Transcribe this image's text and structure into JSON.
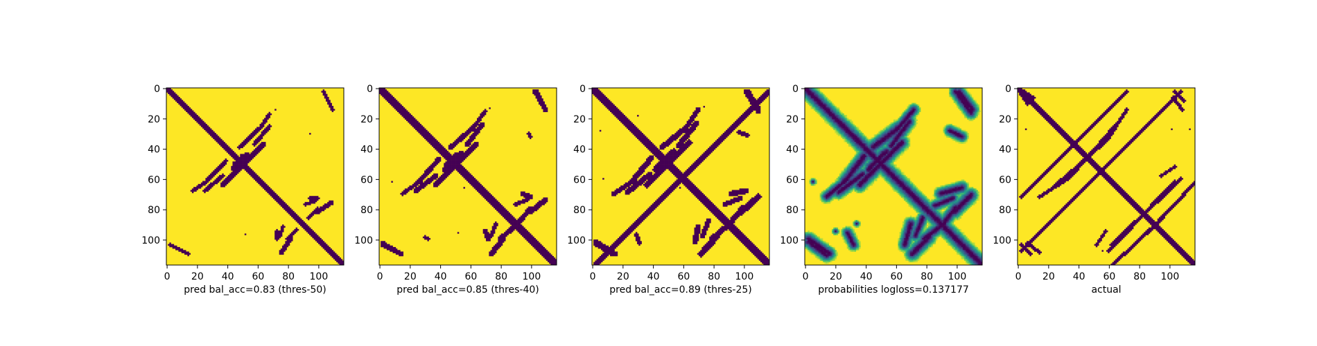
{
  "colors": {
    "contact": "#440154",
    "background": "#fde725",
    "mid": "#21918c",
    "light": "#7ad151",
    "axis": "#000000"
  },
  "chart_data": [
    {
      "type": "heatmap",
      "xlabel": "pred bal_acc=0.83 (thres-50)",
      "matrix_size": 118,
      "xlim": [
        0,
        117
      ],
      "ylim": [
        117,
        0
      ],
      "xticks": [
        "0",
        "20",
        "40",
        "60",
        "80",
        "100"
      ],
      "yticks": [
        "0",
        "20",
        "40",
        "60",
        "80",
        "100"
      ],
      "mode": "binary",
      "diag_width": 1.6,
      "features": [
        {
          "from": [
            0,
            0
          ],
          "to": [
            117,
            117
          ],
          "w": 2.0
        },
        {
          "from": [
            37,
            64
          ],
          "to": [
            53,
            48
          ],
          "w": 1.6
        },
        {
          "from": [
            25,
            68
          ],
          "to": [
            37,
            58
          ],
          "w": 1.4
        },
        {
          "from": [
            44,
            53
          ],
          "to": [
            50,
            45
          ],
          "w": 1.6
        },
        {
          "from": [
            48,
            39
          ],
          "to": [
            62,
            26
          ],
          "w": 1.4
        },
        {
          "from": [
            62,
            26
          ],
          "to": [
            68,
            17
          ],
          "w": 1.2
        },
        {
          "from": [
            76,
            109
          ],
          "to": [
            82,
            100
          ],
          "w": 1.6
        },
        {
          "from": [
            80,
            100
          ],
          "to": [
            86,
            94
          ],
          "w": 1.4
        },
        {
          "from": [
            104,
            2
          ],
          "to": [
            110,
            14
          ],
          "w": 1.3
        },
        {
          "from": [
            2,
            104
          ],
          "to": [
            12,
            109
          ],
          "w": 1.3
        },
        {
          "from": [
            95,
            73
          ],
          "to": [
            100,
            73
          ],
          "w": 1.4
        },
        {
          "from": [
            92,
            77
          ],
          "to": [
            98,
            75
          ],
          "w": 1.2
        }
      ],
      "dots": [
        [
          95,
          30
        ],
        [
          52,
          97
        ],
        [
          72,
          14
        ]
      ]
    },
    {
      "type": "heatmap",
      "xlabel": "pred bal_acc=0.85 (thres-40)",
      "matrix_size": 118,
      "xlim": [
        0,
        117
      ],
      "ylim": [
        117,
        0
      ],
      "xticks": [
        "0",
        "20",
        "40",
        "60",
        "80",
        "100"
      ],
      "yticks": [
        "0",
        "20",
        "40",
        "60",
        "80",
        "100"
      ],
      "mode": "binary",
      "diag_width": 1.8,
      "features": [
        {
          "from": [
            0,
            0
          ],
          "to": [
            117,
            117
          ],
          "w": 2.2
        },
        {
          "from": [
            37,
            64
          ],
          "to": [
            53,
            48
          ],
          "w": 1.8
        },
        {
          "from": [
            24,
            68
          ],
          "to": [
            37,
            58
          ],
          "w": 1.6
        },
        {
          "from": [
            43,
            54
          ],
          "to": [
            51,
            44
          ],
          "w": 1.8
        },
        {
          "from": [
            47,
            39
          ],
          "to": [
            62,
            26
          ],
          "w": 1.6
        },
        {
          "from": [
            62,
            26
          ],
          "to": [
            70,
            15
          ],
          "w": 1.3
        },
        {
          "from": [
            74,
            110
          ],
          "to": [
            82,
            100
          ],
          "w": 1.8
        },
        {
          "from": [
            80,
            100
          ],
          "to": [
            88,
            93
          ],
          "w": 1.6
        },
        {
          "from": [
            103,
            2
          ],
          "to": [
            110,
            14
          ],
          "w": 1.5
        },
        {
          "from": [
            2,
            104
          ],
          "to": [
            12,
            109
          ],
          "w": 1.5
        },
        {
          "from": [
            95,
            70
          ],
          "to": [
            100,
            72
          ],
          "w": 1.6
        },
        {
          "from": [
            90,
            77
          ],
          "to": [
            98,
            74
          ],
          "w": 1.4
        },
        {
          "from": [
            99,
            30
          ],
          "to": [
            100,
            32
          ],
          "w": 1.2
        }
      ],
      "dots": [
        [
          8,
          62
        ],
        [
          52,
          96
        ],
        [
          56,
          66
        ],
        [
          73,
          13
        ]
      ]
    },
    {
      "type": "heatmap",
      "xlabel": "pred bal_acc=0.89 (thres-25)",
      "matrix_size": 118,
      "xlim": [
        0,
        117
      ],
      "ylim": [
        117,
        0
      ],
      "xticks": [
        "0",
        "20",
        "40",
        "60",
        "80",
        "100"
      ],
      "yticks": [
        "0",
        "20",
        "40",
        "60",
        "80",
        "100"
      ],
      "mode": "binary",
      "diag_width": 2.0,
      "features": [
        {
          "from": [
            0,
            0
          ],
          "to": [
            117,
            117
          ],
          "w": 2.4
        },
        {
          "from": [
            2,
            117
          ],
          "to": [
            117,
            2
          ],
          "w": 1.6
        },
        {
          "from": [
            36,
            64
          ],
          "to": [
            53,
            47
          ],
          "w": 2.0
        },
        {
          "from": [
            23,
            69
          ],
          "to": [
            38,
            57
          ],
          "w": 1.8
        },
        {
          "from": [
            42,
            54
          ],
          "to": [
            52,
            43
          ],
          "w": 2.0
        },
        {
          "from": [
            46,
            39
          ],
          "to": [
            62,
            26
          ],
          "w": 1.8
        },
        {
          "from": [
            62,
            26
          ],
          "to": [
            70,
            14
          ],
          "w": 1.5
        },
        {
          "from": [
            72,
            110
          ],
          "to": [
            82,
            99
          ],
          "w": 2.0
        },
        {
          "from": [
            79,
            100
          ],
          "to": [
            90,
            91
          ],
          "w": 1.8
        },
        {
          "from": [
            102,
            2
          ],
          "to": [
            110,
            15
          ],
          "w": 1.7
        },
        {
          "from": [
            2,
            103
          ],
          "to": [
            13,
            110
          ],
          "w": 1.7
        },
        {
          "from": [
            92,
            70
          ],
          "to": [
            102,
            68
          ],
          "w": 1.8
        },
        {
          "from": [
            88,
            77
          ],
          "to": [
            98,
            73
          ],
          "w": 1.6
        },
        {
          "from": [
            97,
            29
          ],
          "to": [
            103,
            31
          ],
          "w": 1.4
        }
      ],
      "dots": [
        [
          5,
          28
        ],
        [
          7,
          60
        ],
        [
          58,
          66
        ],
        [
          30,
          18
        ],
        [
          74,
          12
        ]
      ]
    },
    {
      "type": "heatmap",
      "xlabel": "probabilities logloss=0.137177",
      "matrix_size": 118,
      "xlim": [
        0,
        117
      ],
      "ylim": [
        117,
        0
      ],
      "xticks": [
        "0",
        "20",
        "40",
        "60",
        "80",
        "100"
      ],
      "yticks": [
        "0",
        "20",
        "40",
        "60",
        "80",
        "100"
      ],
      "mode": "probability",
      "diag_width": 2.0,
      "features": [
        {
          "from": [
            0,
            0
          ],
          "to": [
            117,
            117
          ],
          "w": 2.2
        },
        {
          "from": [
            36,
            64
          ],
          "to": [
            53,
            47
          ],
          "w": 2.0
        },
        {
          "from": [
            22,
            69
          ],
          "to": [
            38,
            57
          ],
          "w": 1.8
        },
        {
          "from": [
            42,
            54
          ],
          "to": [
            52,
            43
          ],
          "w": 1.8
        },
        {
          "from": [
            45,
            39
          ],
          "to": [
            62,
            26
          ],
          "w": 2.0
        },
        {
          "from": [
            62,
            26
          ],
          "to": [
            72,
            14
          ],
          "w": 1.6
        },
        {
          "from": [
            71,
            110
          ],
          "to": [
            82,
            99
          ],
          "w": 2.0
        },
        {
          "from": [
            79,
            100
          ],
          "to": [
            92,
            90
          ],
          "w": 1.8
        },
        {
          "from": [
            100,
            2
          ],
          "to": [
            110,
            16
          ],
          "w": 1.8
        },
        {
          "from": [
            2,
            102
          ],
          "to": [
            14,
            111
          ],
          "w": 1.8
        },
        {
          "from": [
            90,
            70
          ],
          "to": [
            104,
            66
          ],
          "w": 1.8
        },
        {
          "from": [
            86,
            78
          ],
          "to": [
            98,
            73
          ],
          "w": 1.6
        },
        {
          "from": [
            96,
            28
          ],
          "to": [
            104,
            32
          ],
          "w": 1.6
        }
      ],
      "dots": [
        [
          5,
          62
        ],
        [
          34,
          90
        ],
        [
          72,
          14
        ],
        [
          20,
          95
        ]
      ]
    },
    {
      "type": "heatmap",
      "xlabel": "actual",
      "matrix_size": 118,
      "xlim": [
        0,
        117
      ],
      "ylim": [
        117,
        0
      ],
      "xticks": [
        "0",
        "20",
        "40",
        "60",
        "80",
        "100"
      ],
      "yticks": [
        "0",
        "20",
        "40",
        "60",
        "80",
        "100"
      ],
      "mode": "binary",
      "diag_width": 1.6,
      "features": [
        {
          "from": [
            0,
            0
          ],
          "to": [
            117,
            117
          ],
          "w": 2.0
        },
        {
          "from": [
            4,
            2
          ],
          "to": [
            10,
            6
          ],
          "w": 1.0
        },
        {
          "from": [
            2,
            4
          ],
          "to": [
            6,
            10
          ],
          "w": 1.0
        },
        {
          "from": [
            2,
            72
          ],
          "to": [
            72,
            2
          ],
          "w": 1.2
        },
        {
          "from": [
            2,
            108
          ],
          "to": [
            60,
            50
          ],
          "w": 1.2
        },
        {
          "from": [
            24,
            65
          ],
          "to": [
            38,
            53
          ],
          "w": 1.3
        },
        {
          "from": [
            38,
            53
          ],
          "to": [
            60,
            33
          ],
          "w": 1.2
        },
        {
          "from": [
            60,
            33
          ],
          "to": [
            72,
            14
          ],
          "w": 1.1
        },
        {
          "from": [
            60,
            108
          ],
          "to": [
            104,
            62
          ],
          "w": 1.2
        },
        {
          "from": [
            86,
            96
          ],
          "to": [
            118,
            62
          ],
          "w": 1.1
        },
        {
          "from": [
            104,
            2
          ],
          "to": [
            110,
            8
          ],
          "w": 1.1
        },
        {
          "from": [
            6,
            103
          ],
          "to": [
            14,
            109
          ],
          "w": 1.1
        },
        {
          "from": [
            95,
            58
          ],
          "to": [
            104,
            52
          ],
          "w": 1.0
        }
      ],
      "dots": [
        [
          5,
          27
        ],
        [
          102,
          27
        ],
        [
          114,
          27
        ],
        [
          56,
          108
        ]
      ]
    }
  ]
}
